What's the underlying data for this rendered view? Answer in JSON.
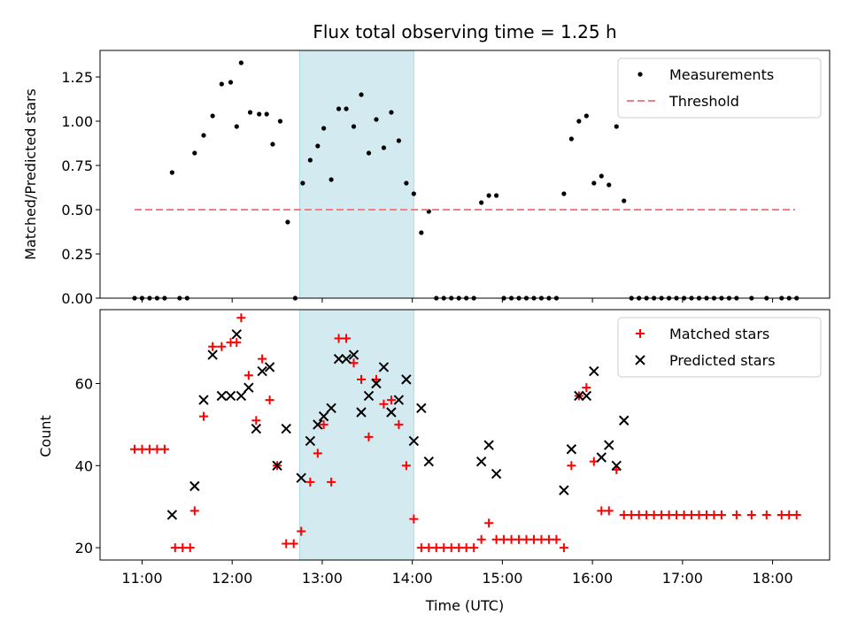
{
  "chart_data": [
    {
      "type": "scatter",
      "title": "Flux total observing time = 1.25 h",
      "xlabel": "",
      "ylabel": "Matched/Predicted stars",
      "xlim": [
        "10:32",
        "18:38"
      ],
      "ylim": [
        0,
        1.4
      ],
      "yticks": [
        "0.00",
        "0.25",
        "0.50",
        "0.75",
        "1.00",
        "1.25"
      ],
      "grid": false,
      "legend": "upper right",
      "highlight_span": {
        "start": "12:45",
        "end": "14:01",
        "color": "#d4eaf1"
      },
      "series": [
        {
          "name": "Measurements",
          "color": "#000000",
          "marker": "dot",
          "points": [
            [
              "10:55",
              0
            ],
            [
              "11:00",
              0
            ],
            [
              "11:05",
              0
            ],
            [
              "11:10",
              0
            ],
            [
              "11:15",
              0
            ],
            [
              "11:25",
              0
            ],
            [
              "11:30",
              0
            ],
            [
              "11:20",
              0.71
            ],
            [
              "11:35",
              0.82
            ],
            [
              "11:41",
              0.92
            ],
            [
              "11:47",
              1.03
            ],
            [
              "11:53",
              1.21
            ],
            [
              "11:59",
              1.22
            ],
            [
              "12:03",
              0.97
            ],
            [
              "12:06",
              1.33
            ],
            [
              "12:12",
              1.05
            ],
            [
              "12:18",
              1.04
            ],
            [
              "12:23",
              1.04
            ],
            [
              "12:27",
              0.87
            ],
            [
              "12:32",
              1.0
            ],
            [
              "12:37",
              0.43
            ],
            [
              "12:42",
              0
            ],
            [
              "12:47",
              0.65
            ],
            [
              "12:52",
              0.78
            ],
            [
              "12:57",
              0.86
            ],
            [
              "13:01",
              0.96
            ],
            [
              "13:06",
              0.67
            ],
            [
              "13:11",
              1.07
            ],
            [
              "13:16",
              1.07
            ],
            [
              "13:21",
              0.97
            ],
            [
              "13:26",
              1.15
            ],
            [
              "13:31",
              0.82
            ],
            [
              "13:36",
              1.01
            ],
            [
              "13:41",
              0.85
            ],
            [
              "13:46",
              1.05
            ],
            [
              "13:51",
              0.89
            ],
            [
              "13:56",
              0.65
            ],
            [
              "14:01",
              0.59
            ],
            [
              "14:06",
              0.37
            ],
            [
              "14:11",
              0.49
            ],
            [
              "14:16",
              0
            ],
            [
              "14:21",
              0
            ],
            [
              "14:26",
              0
            ],
            [
              "14:31",
              0
            ],
            [
              "14:36",
              0
            ],
            [
              "14:41",
              0
            ],
            [
              "14:46",
              0.54
            ],
            [
              "14:51",
              0.58
            ],
            [
              "14:56",
              0.58
            ],
            [
              "15:01",
              0
            ],
            [
              "15:06",
              0
            ],
            [
              "15:11",
              0
            ],
            [
              "15:16",
              0
            ],
            [
              "15:21",
              0
            ],
            [
              "15:26",
              0
            ],
            [
              "15:31",
              0
            ],
            [
              "15:36",
              0
            ],
            [
              "15:41",
              0.59
            ],
            [
              "15:46",
              0.9
            ],
            [
              "15:51",
              1.0
            ],
            [
              "15:56",
              1.03
            ],
            [
              "16:01",
              0.65
            ],
            [
              "16:06",
              0.69
            ],
            [
              "16:11",
              0.64
            ],
            [
              "16:16",
              0.97
            ],
            [
              "16:21",
              0.55
            ],
            [
              "16:26",
              0
            ],
            [
              "16:31",
              0
            ],
            [
              "16:36",
              0
            ],
            [
              "16:41",
              0
            ],
            [
              "16:46",
              0
            ],
            [
              "16:51",
              0
            ],
            [
              "16:56",
              0
            ],
            [
              "17:01",
              0
            ],
            [
              "17:06",
              0
            ],
            [
              "17:11",
              0
            ],
            [
              "17:16",
              0
            ],
            [
              "17:21",
              0
            ],
            [
              "17:26",
              0
            ],
            [
              "17:31",
              0
            ],
            [
              "17:36",
              0
            ],
            [
              "17:46",
              0
            ],
            [
              "17:56",
              0
            ],
            [
              "18:06",
              0
            ],
            [
              "18:11",
              0
            ],
            [
              "18:16",
              0
            ]
          ]
        },
        {
          "name": "Threshold",
          "color": "#f08080",
          "style": "dashed",
          "points": [
            [
              "10:55",
              0.5
            ],
            [
              "18:15",
              0.5
            ]
          ]
        }
      ]
    },
    {
      "type": "scatter",
      "title": "",
      "xlabel": "Time (UTC)",
      "ylabel": "Count",
      "xlim": [
        "10:32",
        "18:38"
      ],
      "ylim": [
        17,
        78
      ],
      "yticks": [
        "20",
        "40",
        "60"
      ],
      "xticks": [
        "11:00",
        "12:00",
        "13:00",
        "14:00",
        "15:00",
        "16:00",
        "17:00",
        "18:00"
      ],
      "grid": false,
      "legend": "upper right",
      "highlight_span": {
        "start": "12:45",
        "end": "14:01",
        "color": "#d4eaf1"
      },
      "series": [
        {
          "name": "Matched stars",
          "color": "#ff0000",
          "marker": "plus",
          "points": [
            [
              "10:55",
              44
            ],
            [
              "11:00",
              44
            ],
            [
              "11:05",
              44
            ],
            [
              "11:10",
              44
            ],
            [
              "11:15",
              44
            ],
            [
              "11:22",
              20
            ],
            [
              "11:27",
              20
            ],
            [
              "11:32",
              20
            ],
            [
              "11:35",
              29
            ],
            [
              "11:41",
              52
            ],
            [
              "11:47",
              69
            ],
            [
              "11:53",
              69
            ],
            [
              "11:59",
              70
            ],
            [
              "12:03",
              70
            ],
            [
              "12:06",
              76
            ],
            [
              "12:11",
              62
            ],
            [
              "12:16",
              51
            ],
            [
              "12:20",
              66
            ],
            [
              "12:25",
              56
            ],
            [
              "12:30",
              40
            ],
            [
              "12:36",
              21
            ],
            [
              "12:41",
              21
            ],
            [
              "12:46",
              24
            ],
            [
              "12:52",
              36
            ],
            [
              "12:57",
              43
            ],
            [
              "13:01",
              50
            ],
            [
              "13:06",
              36
            ],
            [
              "13:11",
              71
            ],
            [
              "13:16",
              71
            ],
            [
              "13:21",
              65
            ],
            [
              "13:26",
              61
            ],
            [
              "13:31",
              47
            ],
            [
              "13:36",
              61
            ],
            [
              "13:41",
              55
            ],
            [
              "13:46",
              56
            ],
            [
              "13:51",
              50
            ],
            [
              "13:56",
              40
            ],
            [
              "14:01",
              27
            ],
            [
              "14:06",
              20
            ],
            [
              "14:11",
              20
            ],
            [
              "14:16",
              20
            ],
            [
              "14:21",
              20
            ],
            [
              "14:26",
              20
            ],
            [
              "14:31",
              20
            ],
            [
              "14:36",
              20
            ],
            [
              "14:41",
              20
            ],
            [
              "14:46",
              22
            ],
            [
              "14:51",
              26
            ],
            [
              "14:56",
              22
            ],
            [
              "15:01",
              22
            ],
            [
              "15:06",
              22
            ],
            [
              "15:11",
              22
            ],
            [
              "15:16",
              22
            ],
            [
              "15:21",
              22
            ],
            [
              "15:26",
              22
            ],
            [
              "15:31",
              22
            ],
            [
              "15:36",
              22
            ],
            [
              "15:41",
              20
            ],
            [
              "15:46",
              40
            ],
            [
              "15:51",
              57
            ],
            [
              "15:56",
              59
            ],
            [
              "16:01",
              41
            ],
            [
              "16:06",
              29
            ],
            [
              "16:11",
              29
            ],
            [
              "16:16",
              39
            ],
            [
              "16:21",
              28
            ],
            [
              "16:26",
              28
            ],
            [
              "16:31",
              28
            ],
            [
              "16:36",
              28
            ],
            [
              "16:41",
              28
            ],
            [
              "16:46",
              28
            ],
            [
              "16:51",
              28
            ],
            [
              "16:56",
              28
            ],
            [
              "17:01",
              28
            ],
            [
              "17:06",
              28
            ],
            [
              "17:11",
              28
            ],
            [
              "17:16",
              28
            ],
            [
              "17:21",
              28
            ],
            [
              "17:26",
              28
            ],
            [
              "17:36",
              28
            ],
            [
              "17:46",
              28
            ],
            [
              "17:56",
              28
            ],
            [
              "18:06",
              28
            ],
            [
              "18:11",
              28
            ],
            [
              "18:16",
              28
            ]
          ]
        },
        {
          "name": "Predicted stars",
          "color": "#000000",
          "marker": "x",
          "points": [
            [
              "11:20",
              28
            ],
            [
              "11:35",
              35
            ],
            [
              "11:41",
              56
            ],
            [
              "11:47",
              67
            ],
            [
              "11:53",
              57
            ],
            [
              "11:59",
              57
            ],
            [
              "12:03",
              72
            ],
            [
              "12:06",
              57
            ],
            [
              "12:11",
              59
            ],
            [
              "12:16",
              49
            ],
            [
              "12:20",
              63
            ],
            [
              "12:25",
              64
            ],
            [
              "12:30",
              40
            ],
            [
              "12:36",
              49
            ],
            [
              "12:46",
              37
            ],
            [
              "12:52",
              46
            ],
            [
              "12:57",
              50
            ],
            [
              "13:01",
              52
            ],
            [
              "13:06",
              54
            ],
            [
              "13:11",
              66
            ],
            [
              "13:16",
              66
            ],
            [
              "13:21",
              67
            ],
            [
              "13:26",
              53
            ],
            [
              "13:31",
              57
            ],
            [
              "13:36",
              60
            ],
            [
              "13:41",
              64
            ],
            [
              "13:46",
              53
            ],
            [
              "13:51",
              56
            ],
            [
              "13:56",
              61
            ],
            [
              "14:01",
              46
            ],
            [
              "14:06",
              54
            ],
            [
              "14:11",
              41
            ],
            [
              "14:46",
              41
            ],
            [
              "14:51",
              45
            ],
            [
              "14:56",
              38
            ],
            [
              "15:41",
              34
            ],
            [
              "15:46",
              44
            ],
            [
              "15:51",
              57
            ],
            [
              "15:56",
              57
            ],
            [
              "16:01",
              63
            ],
            [
              "16:06",
              42
            ],
            [
              "16:11",
              45
            ],
            [
              "16:16",
              40
            ],
            [
              "16:21",
              51
            ]
          ]
        }
      ]
    }
  ]
}
